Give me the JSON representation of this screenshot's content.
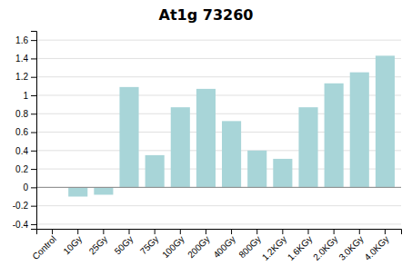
{
  "chart_data": {
    "type": "bar",
    "title": "At1g 73260",
    "categories": [
      "Control",
      "10Gy",
      "25Gy",
      "50Gy",
      "75Gy",
      "100Gy",
      "200Gy",
      "400Gy",
      "800Gy",
      "1.2KGy",
      "1.6KGy",
      "2.0KGy",
      "3.0KGy",
      "4.0KGy"
    ],
    "values": [
      0.0,
      -0.1,
      -0.08,
      1.09,
      0.35,
      0.87,
      1.07,
      0.72,
      0.4,
      0.31,
      0.87,
      1.13,
      1.25,
      1.43
    ],
    "color": "#a8d5d8",
    "ylim": [
      -0.45,
      1.7
    ],
    "yticks": [
      -0.4,
      -0.2,
      0,
      0.2,
      0.4,
      0.6,
      0.8,
      1.0,
      1.2,
      1.4,
      1.6
    ],
    "grid": true
  }
}
